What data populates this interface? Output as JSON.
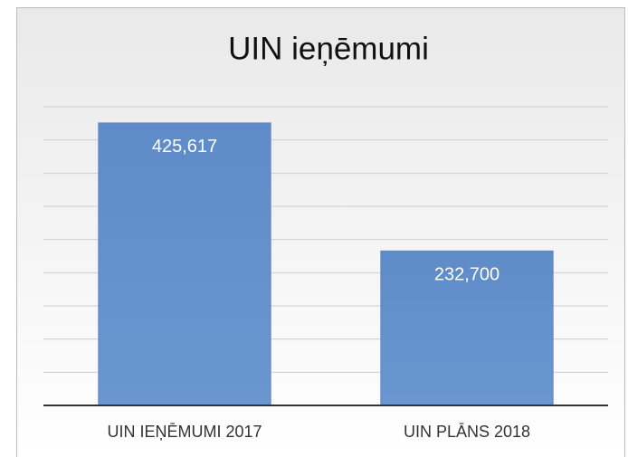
{
  "chart_data": {
    "type": "bar",
    "title": "UIN ieņēmumi",
    "categories": [
      "UIN IEŅĒMUMI 2017",
      "UIN PLĀNS 2018"
    ],
    "values": [
      425617,
      232700
    ],
    "value_labels": [
      "425,617",
      "232,700"
    ],
    "color": "#5b87c4",
    "ylim": [
      0,
      450000
    ],
    "yticks": [
      0,
      50000,
      100000,
      150000,
      200000,
      250000,
      300000,
      350000,
      400000,
      450000
    ],
    "grid": true
  }
}
